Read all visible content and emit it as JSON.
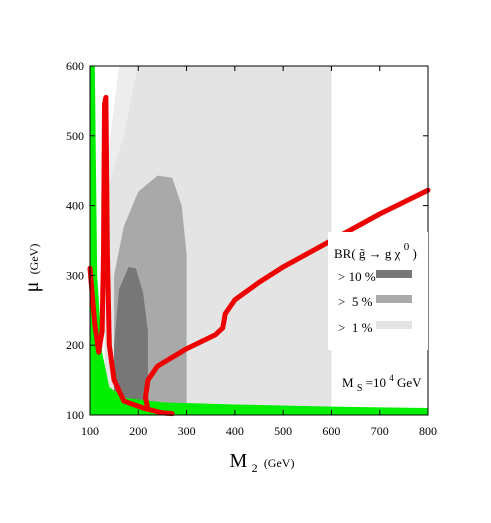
{
  "chart_data": {
    "type": "area",
    "title": "",
    "xlabel": {
      "main": "M",
      "sub": "2",
      "unit": "(GeV)"
    },
    "ylabel": {
      "main": "μ",
      "unit": "(GeV)"
    },
    "xlim": [
      100,
      800
    ],
    "ylim": [
      100,
      600
    ],
    "xticks": [
      100,
      200,
      300,
      400,
      500,
      600,
      700,
      800
    ],
    "yticks": [
      100,
      200,
      300,
      400,
      500,
      600
    ],
    "grid": false,
    "legend_placement": "right",
    "legend": {
      "title_prefix": "BR(",
      "title_sym1": "g̃",
      "title_arrow": "→",
      "title_sym2": "g χ",
      "title_sup": "0",
      "title_suffix": ")",
      "entries": [
        {
          "label": "> 10 %",
          "color": "#777777"
        },
        {
          "label": ">  5 %",
          "color": "#a9a9a9"
        },
        {
          "label": ">  1 %",
          "color": "#e4e4e4"
        }
      ]
    },
    "annotation": {
      "pre": "M",
      "sub": "S",
      "mid": "=10",
      "sup": "4",
      "post": " GeV"
    },
    "colors": {
      "green": "#00ee00",
      "red": "#ee0000",
      "br10": "#777777",
      "br5": "#a9a9a9",
      "br1": "#e4e4e4",
      "br_light": "#ededed"
    },
    "regions": [
      {
        "name": "BR > 1% light band",
        "color": "#ededed",
        "boundary": [
          [
            160,
            600
          ],
          [
            600,
            600
          ],
          [
            600,
            108
          ],
          [
            300,
            108
          ],
          [
            300,
            240
          ],
          [
            180,
            400
          ],
          [
            130,
            430
          ]
        ]
      },
      {
        "name": "BR > 1%",
        "color": "#e4e4e4",
        "boundary": [
          [
            130,
            410
          ],
          [
            170,
            500
          ],
          [
            190,
            570
          ],
          [
            200,
            600
          ],
          [
            600,
            600
          ],
          [
            600,
            108
          ],
          [
            130,
            108
          ]
        ]
      },
      {
        "name": "BR > 5%",
        "color": "#a9a9a9",
        "boundary": [
          [
            150,
            108
          ],
          [
            150,
            300
          ],
          [
            170,
            370
          ],
          [
            200,
            420
          ],
          [
            240,
            443
          ],
          [
            270,
            440
          ],
          [
            290,
            400
          ],
          [
            300,
            330
          ],
          [
            300,
            108
          ]
        ]
      },
      {
        "name": "BR > 10%",
        "color": "#777777",
        "boundary": [
          [
            150,
            108
          ],
          [
            150,
            200
          ],
          [
            160,
            280
          ],
          [
            180,
            312
          ],
          [
            195,
            310
          ],
          [
            210,
            275
          ],
          [
            220,
            220
          ],
          [
            220,
            108
          ]
        ]
      },
      {
        "name": "green",
        "color": "#00ee00",
        "boundary": [
          [
            100,
            600
          ],
          [
            110,
            600
          ],
          [
            115,
            300
          ],
          [
            125,
            190
          ],
          [
            140,
            140
          ],
          [
            170,
            125
          ],
          [
            250,
            118
          ],
          [
            400,
            115
          ],
          [
            600,
            112
          ],
          [
            800,
            110
          ],
          [
            800,
            100
          ],
          [
            100,
            100
          ]
        ]
      }
    ],
    "curves": [
      {
        "name": "red left",
        "color": "#ee0000",
        "points": [
          [
            100,
            310
          ],
          [
            110,
            230
          ],
          [
            118,
            190
          ],
          [
            125,
            220
          ],
          [
            128,
            330
          ],
          [
            130,
            545
          ],
          [
            133,
            555
          ],
          [
            136,
            330
          ],
          [
            140,
            200
          ],
          [
            150,
            150
          ],
          [
            170,
            120
          ],
          [
            210,
            110
          ],
          [
            250,
            103
          ],
          [
            270,
            102
          ]
        ]
      },
      {
        "name": "red right",
        "color": "#ee0000",
        "points": [
          [
            220,
            108
          ],
          [
            215,
            125
          ],
          [
            220,
            150
          ],
          [
            240,
            170
          ],
          [
            300,
            195
          ],
          [
            360,
            215
          ],
          [
            375,
            225
          ],
          [
            380,
            245
          ],
          [
            400,
            265
          ],
          [
            450,
            290
          ],
          [
            500,
            312
          ],
          [
            600,
            350
          ],
          [
            700,
            388
          ],
          [
            800,
            422
          ]
        ]
      }
    ]
  }
}
